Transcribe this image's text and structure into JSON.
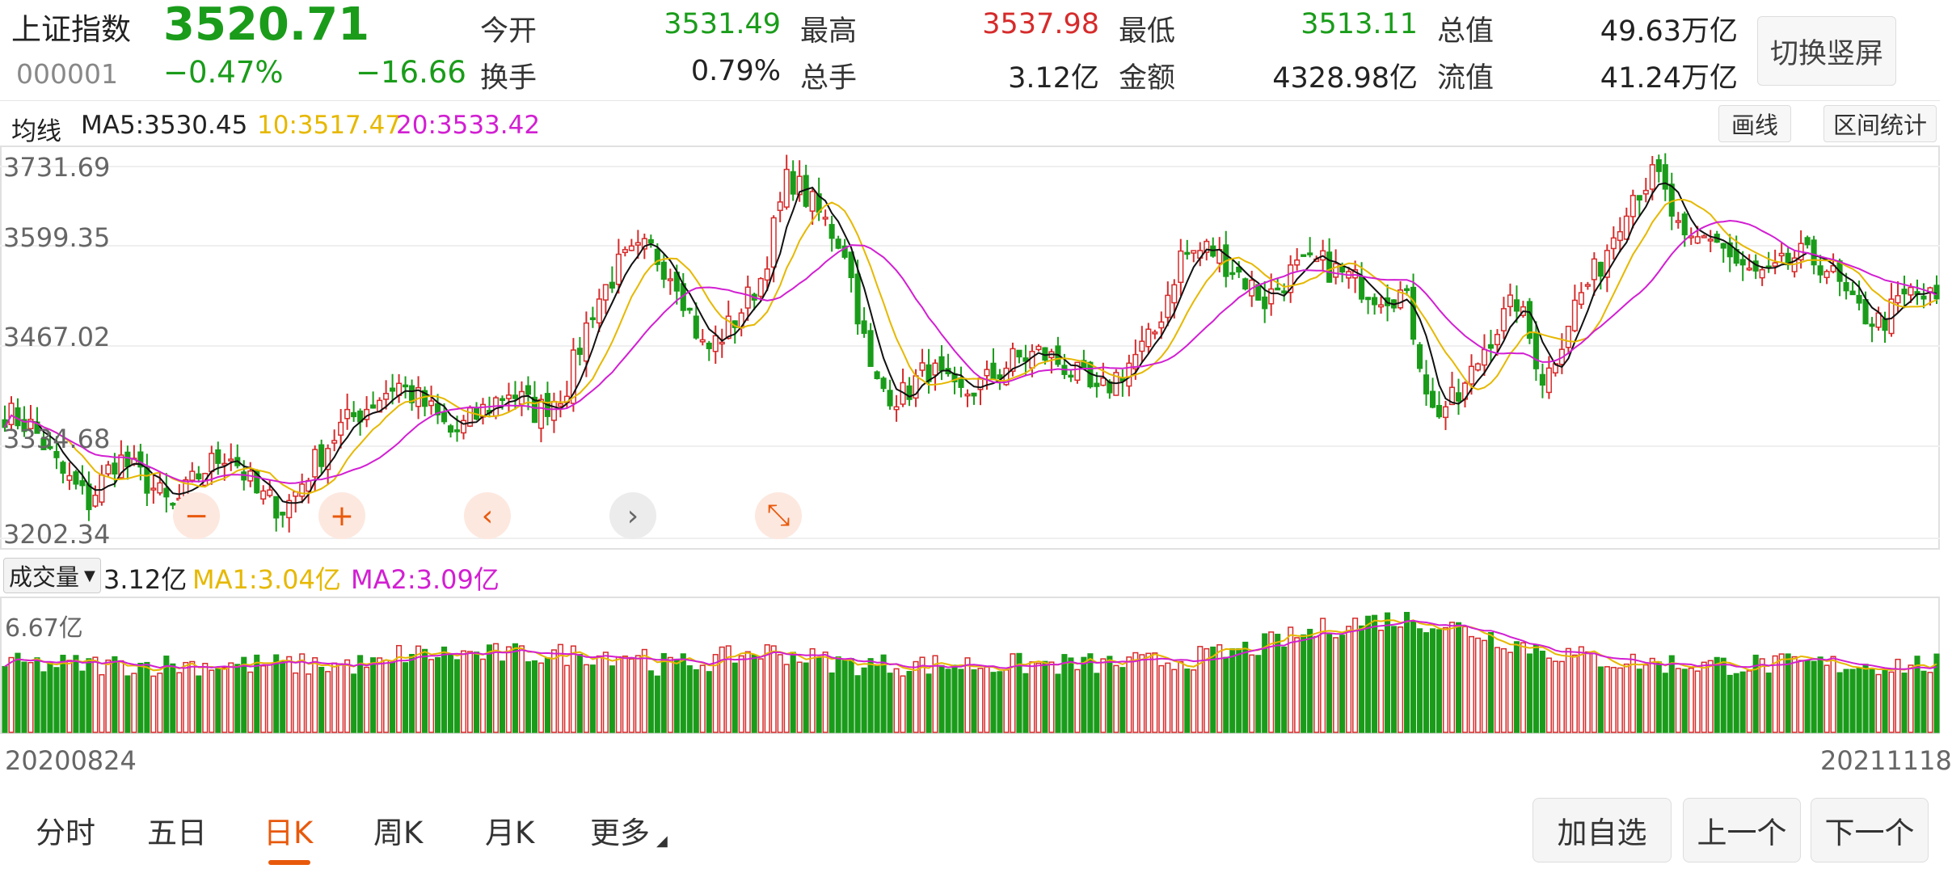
{
  "quote": {
    "name": "上证指数",
    "price": "3520.71",
    "code": "000001",
    "change_pct": "−0.47%",
    "change": "−16.66",
    "fields": [
      {
        "label": "今开",
        "value": "3531.49",
        "color": "#1a9c1a"
      },
      {
        "label": "最高",
        "value": "3537.98",
        "color": "#d62b2b"
      },
      {
        "label": "最低",
        "value": "3513.11",
        "color": "#1a9c1a"
      },
      {
        "label": "总值",
        "value": "49.63万亿",
        "color": "#222222"
      },
      {
        "label": "换手",
        "value": "0.79%",
        "color": "#222222"
      },
      {
        "label": "总手",
        "value": "3.12亿",
        "color": "#222222"
      },
      {
        "label": "金额",
        "value": "4328.98亿",
        "color": "#222222"
      },
      {
        "label": "流值",
        "value": "41.24万亿",
        "color": "#222222"
      }
    ],
    "switch_label": "切换竖屏"
  },
  "ma_bar": {
    "title": "均线",
    "ma5": "MA5:3530.45",
    "ma10": "10:3517.47",
    "ma20": "20:3533.42",
    "draw_label": "画线",
    "range_label": "区间统计"
  },
  "volume_bar": {
    "title": "成交量",
    "value": "3.12亿",
    "ma1": "MA1:3.04亿",
    "ma2": "MA2:3.09亿",
    "max_label": "6.67亿"
  },
  "dates": {
    "start": "20200824",
    "end": "20211118"
  },
  "colors": {
    "up": "#d62b2b",
    "down": "#1a9c1a",
    "ma5": "#111111",
    "ma10": "#e6b800",
    "ma20": "#d21fd2",
    "accent": "#e8590c"
  },
  "zoom_controls": [
    {
      "name": "zoom-out-icon",
      "glyph": "−"
    },
    {
      "name": "zoom-in-icon",
      "glyph": "+"
    },
    {
      "name": "pan-left-icon",
      "glyph": "‹"
    },
    {
      "name": "pan-right-icon",
      "glyph": "›"
    },
    {
      "name": "collapse-icon",
      "glyph": "⤡"
    }
  ],
  "tabs": [
    {
      "label": "分时",
      "active": false
    },
    {
      "label": "五日",
      "active": false
    },
    {
      "label": "日K",
      "active": true
    },
    {
      "label": "周K",
      "active": false
    },
    {
      "label": "月K",
      "active": false
    },
    {
      "label": "更多",
      "active": false
    }
  ],
  "buttons": {
    "add_watch": "加自选",
    "prev": "上一个",
    "next": "下一个"
  },
  "chart_data": {
    "type": "candlestick",
    "period": "日K",
    "y_ticks": [
      "3731.69",
      "3599.35",
      "3467.02",
      "3334.68",
      "3202.34"
    ],
    "ylim": [
      3202.34,
      3731.69
    ],
    "x_range": [
      "20200824",
      "20211118"
    ],
    "close_anchors": [
      3380,
      3360,
      3300,
      3260,
      3320,
      3290,
      3250,
      3300,
      3330,
      3270,
      3250,
      3310,
      3360,
      3390,
      3420,
      3390,
      3350,
      3380,
      3410,
      3380,
      3410,
      3520,
      3580,
      3600,
      3560,
      3460,
      3500,
      3560,
      3700,
      3650,
      3600,
      3420,
      3400,
      3440,
      3400,
      3420,
      3450,
      3460,
      3440,
      3400,
      3440,
      3480,
      3590,
      3600,
      3570,
      3530,
      3570,
      3580,
      3560,
      3540,
      3540,
      3380,
      3400,
      3480,
      3530,
      3420,
      3520,
      3580,
      3670,
      3700,
      3600,
      3620,
      3570,
      3560,
      3590,
      3580,
      3520,
      3500,
      3540,
      3530
    ],
    "volume_max": "6.67亿",
    "volume_last": "3.12亿",
    "volume_ma1": "3.04亿",
    "volume_ma2": "3.09亿"
  }
}
